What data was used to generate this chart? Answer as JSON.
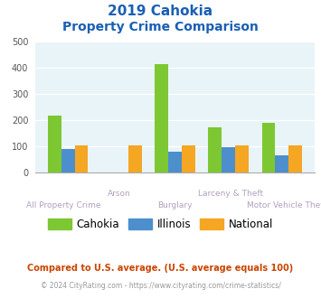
{
  "title_line1": "2019 Cahokia",
  "title_line2": "Property Crime Comparison",
  "categories": [
    "All Property Crime",
    "Arson",
    "Burglary",
    "Larceny & Theft",
    "Motor Vehicle Theft"
  ],
  "cahokia": [
    218,
    0,
    413,
    175,
    192
  ],
  "illinois": [
    90,
    0,
    80,
    97,
    68
  ],
  "national": [
    104,
    105,
    104,
    104,
    104
  ],
  "color_cahokia": "#7dc832",
  "color_illinois": "#4d8fcc",
  "color_national": "#f5a623",
  "ylim": [
    0,
    500
  ],
  "yticks": [
    0,
    100,
    200,
    300,
    400,
    500
  ],
  "bg_color": "#e8f4f8",
  "title_color": "#1a5fb4",
  "xlabel_color": "#b0a0c0",
  "legend_labels": [
    "Cahokia",
    "Illinois",
    "National"
  ],
  "footnote1": "Compared to U.S. average. (U.S. average equals 100)",
  "footnote2": "© 2024 CityRating.com - https://www.cityrating.com/crime-statistics/",
  "footnote1_color": "#cc4400",
  "footnote2_color": "#999999",
  "upper_label_indices": [
    1,
    3
  ],
  "lower_label_indices": [
    0,
    2,
    4
  ],
  "bar_width": 0.25
}
